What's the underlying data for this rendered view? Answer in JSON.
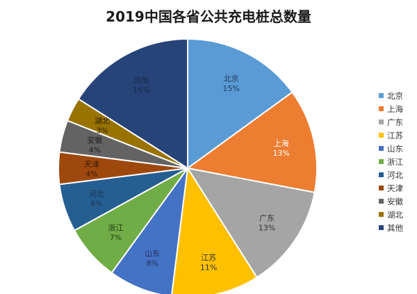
{
  "chart_data": {
    "type": "pie",
    "title": "2019中国各省公共充电桩总数量",
    "legend_position": "right",
    "slices": [
      {
        "label": "北京",
        "value": 15,
        "value_label": "15%",
        "color": "#5b9bd5",
        "label_color": "#1f3a5c"
      },
      {
        "label": "上海",
        "value": 13,
        "value_label": "13%",
        "color": "#ed7d31",
        "label_color": "#ffffff"
      },
      {
        "label": "广东",
        "value": 13,
        "value_label": "13%",
        "color": "#a5a5a5",
        "label_color": "#333333"
      },
      {
        "label": "江苏",
        "value": 11,
        "value_label": "11%",
        "color": "#ffc000",
        "label_color": "#333333"
      },
      {
        "label": "山东",
        "value": 8,
        "value_label": "8%",
        "color": "#4472c4",
        "label_color": "#1f2f5c"
      },
      {
        "label": "浙江",
        "value": 7,
        "value_label": "7%",
        "color": "#70ad47",
        "label_color": "#1e3a10"
      },
      {
        "label": "河北",
        "value": 6,
        "value_label": "6%",
        "color": "#255e91",
        "label_color": "#1a3550"
      },
      {
        "label": "天津",
        "value": 4,
        "value_label": "4%",
        "color": "#9e480e",
        "label_color": "#3a1a05"
      },
      {
        "label": "安徽",
        "value": 4,
        "value_label": "4%",
        "color": "#636363",
        "label_color": "#222222"
      },
      {
        "label": "湖北",
        "value": 3,
        "value_label": "3%",
        "color": "#997300",
        "label_color": "#2a2000"
      },
      {
        "label": "其他",
        "value": 16,
        "value_label": "16%",
        "color": "#264478",
        "label_color": "#1a2c4d"
      }
    ]
  }
}
